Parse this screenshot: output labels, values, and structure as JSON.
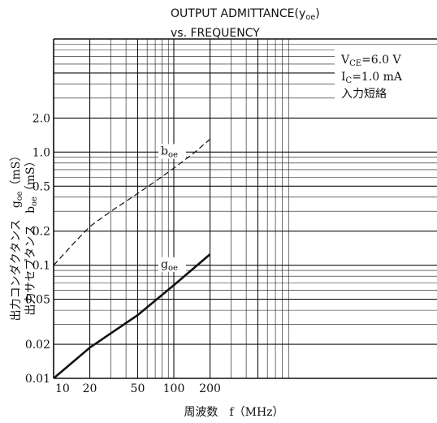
{
  "chart_data": {
    "type": "line",
    "title_line1": "OUTPUT ADMITTANCE(y",
    "title_sub": "oe",
    "title_close": ")",
    "title_line2": "vs. FREQUENCY",
    "xlabel": "周波数　f（MHz）",
    "ylabel_line1": "出力コンダクタンス　g",
    "ylabel_line1_sub": "oe",
    "ylabel_line1_unit": "（mS）",
    "ylabel_line2": "出力サセプタンス　b",
    "ylabel_line2_sub": "oe",
    "ylabel_line2_unit": "（mS）",
    "x_scale": "log",
    "y_scale": "log",
    "xlim": [
      10,
      1000
    ],
    "ylim": [
      0.01,
      10
    ],
    "x_ticks": [
      10,
      20,
      50,
      100,
      200
    ],
    "x_tick_labels": [
      "10",
      "20",
      "50",
      "100",
      "200"
    ],
    "y_ticks": [
      0.01,
      0.02,
      0.05,
      0.1,
      0.2,
      0.5,
      1.0,
      2.0
    ],
    "y_tick_labels": [
      "0.01",
      "0.02",
      "0.05",
      "0.1",
      "0.2",
      "0.5",
      "1.0",
      "2.0"
    ],
    "conditions": [
      {
        "main": "V",
        "sub": "CE",
        "rest": "=6.0  V"
      },
      {
        "main": "I",
        "sub": "C",
        "rest": "=1.0  mA"
      },
      {
        "main": "入力短絡",
        "sub": "",
        "rest": ""
      }
    ],
    "series": [
      {
        "name": "b",
        "name_sub": "oe",
        "style": "dashed",
        "x": [
          10,
          15,
          20,
          30,
          50,
          70,
          100,
          150,
          200
        ],
        "y": [
          0.1,
          0.16,
          0.22,
          0.3,
          0.43,
          0.55,
          0.72,
          1.0,
          1.3
        ]
      },
      {
        "name": "g",
        "name_sub": "oe",
        "style": "solid",
        "x": [
          10,
          20,
          50,
          100,
          200
        ],
        "y": [
          0.01,
          0.0187,
          0.0362,
          0.0667,
          0.125
        ]
      }
    ],
    "grid": true,
    "colors": {
      "ink": "#111111",
      "background": "#ffffff"
    }
  }
}
